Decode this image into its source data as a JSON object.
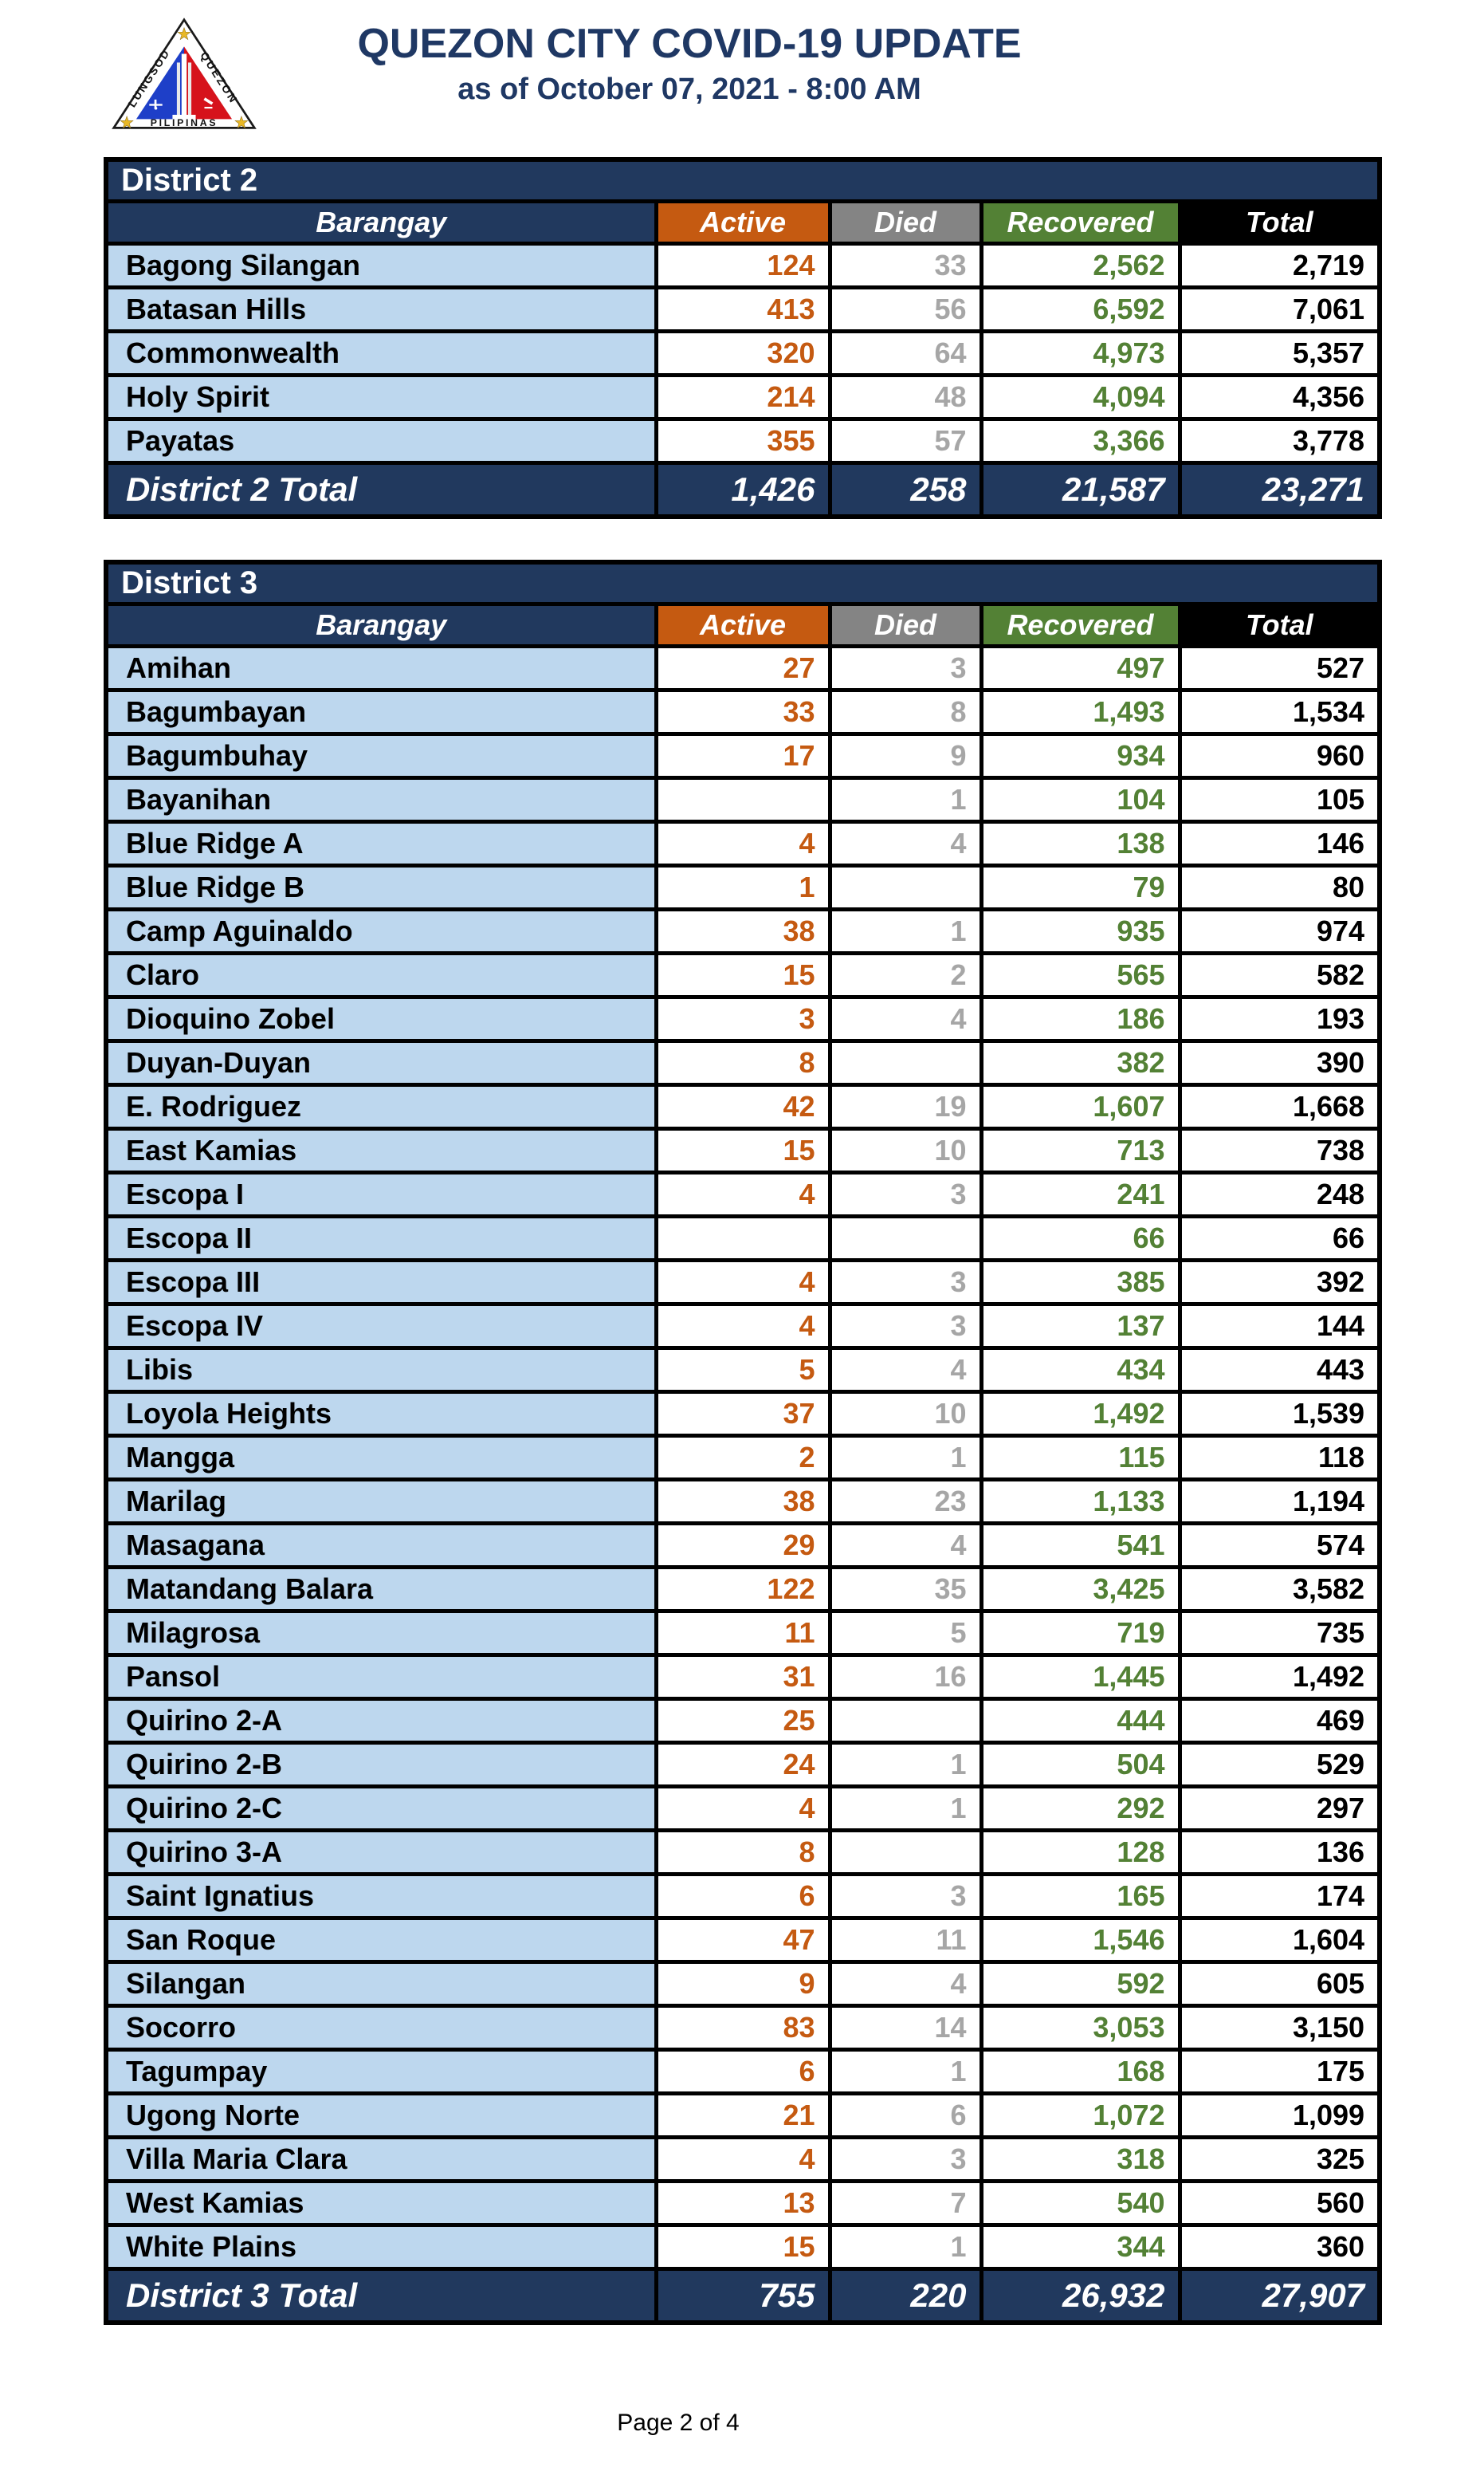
{
  "header": {
    "title": "QUEZON CITY COVID-19 UPDATE",
    "subtitle": "as of October 07, 2021 - 8:00 AM",
    "logo": {
      "text_left": "LUNGSOD",
      "text_right": "QUEZON",
      "text_bottom": "PILIPINAS"
    }
  },
  "columns": [
    "Barangay",
    "Active",
    "Died",
    "Recovered",
    "Total"
  ],
  "districts": [
    {
      "title": "District 2",
      "rows": [
        {
          "name": "Bagong Silangan",
          "active": "124",
          "died": "33",
          "recovered": "2,562",
          "total": "2,719"
        },
        {
          "name": "Batasan Hills",
          "active": "413",
          "died": "56",
          "recovered": "6,592",
          "total": "7,061"
        },
        {
          "name": "Commonwealth",
          "active": "320",
          "died": "64",
          "recovered": "4,973",
          "total": "5,357"
        },
        {
          "name": "Holy Spirit",
          "active": "214",
          "died": "48",
          "recovered": "4,094",
          "total": "4,356"
        },
        {
          "name": "Payatas",
          "active": "355",
          "died": "57",
          "recovered": "3,366",
          "total": "3,778"
        }
      ],
      "total": {
        "label": "District 2 Total",
        "active": "1,426",
        "died": "258",
        "recovered": "21,587",
        "total": "23,271"
      }
    },
    {
      "title": "District 3",
      "rows": [
        {
          "name": "Amihan",
          "active": "27",
          "died": "3",
          "recovered": "497",
          "total": "527"
        },
        {
          "name": "Bagumbayan",
          "active": "33",
          "died": "8",
          "recovered": "1,493",
          "total": "1,534"
        },
        {
          "name": "Bagumbuhay",
          "active": "17",
          "died": "9",
          "recovered": "934",
          "total": "960"
        },
        {
          "name": "Bayanihan",
          "active": "",
          "died": "1",
          "recovered": "104",
          "total": "105"
        },
        {
          "name": "Blue Ridge A",
          "active": "4",
          "died": "4",
          "recovered": "138",
          "total": "146"
        },
        {
          "name": "Blue Ridge B",
          "active": "1",
          "died": "",
          "recovered": "79",
          "total": "80"
        },
        {
          "name": "Camp Aguinaldo",
          "active": "38",
          "died": "1",
          "recovered": "935",
          "total": "974"
        },
        {
          "name": "Claro",
          "active": "15",
          "died": "2",
          "recovered": "565",
          "total": "582"
        },
        {
          "name": "Dioquino Zobel",
          "active": "3",
          "died": "4",
          "recovered": "186",
          "total": "193"
        },
        {
          "name": "Duyan-Duyan",
          "active": "8",
          "died": "",
          "recovered": "382",
          "total": "390"
        },
        {
          "name": "E. Rodriguez",
          "active": "42",
          "died": "19",
          "recovered": "1,607",
          "total": "1,668"
        },
        {
          "name": "East Kamias",
          "active": "15",
          "died": "10",
          "recovered": "713",
          "total": "738"
        },
        {
          "name": "Escopa I",
          "active": "4",
          "died": "3",
          "recovered": "241",
          "total": "248"
        },
        {
          "name": "Escopa II",
          "active": "",
          "died": "",
          "recovered": "66",
          "total": "66"
        },
        {
          "name": "Escopa III",
          "active": "4",
          "died": "3",
          "recovered": "385",
          "total": "392"
        },
        {
          "name": "Escopa IV",
          "active": "4",
          "died": "3",
          "recovered": "137",
          "total": "144"
        },
        {
          "name": "Libis",
          "active": "5",
          "died": "4",
          "recovered": "434",
          "total": "443"
        },
        {
          "name": "Loyola Heights",
          "active": "37",
          "died": "10",
          "recovered": "1,492",
          "total": "1,539"
        },
        {
          "name": "Mangga",
          "active": "2",
          "died": "1",
          "recovered": "115",
          "total": "118"
        },
        {
          "name": "Marilag",
          "active": "38",
          "died": "23",
          "recovered": "1,133",
          "total": "1,194"
        },
        {
          "name": "Masagana",
          "active": "29",
          "died": "4",
          "recovered": "541",
          "total": "574"
        },
        {
          "name": "Matandang Balara",
          "active": "122",
          "died": "35",
          "recovered": "3,425",
          "total": "3,582"
        },
        {
          "name": "Milagrosa",
          "active": "11",
          "died": "5",
          "recovered": "719",
          "total": "735"
        },
        {
          "name": "Pansol",
          "active": "31",
          "died": "16",
          "recovered": "1,445",
          "total": "1,492"
        },
        {
          "name": "Quirino 2-A",
          "active": "25",
          "died": "",
          "recovered": "444",
          "total": "469"
        },
        {
          "name": "Quirino 2-B",
          "active": "24",
          "died": "1",
          "recovered": "504",
          "total": "529"
        },
        {
          "name": "Quirino 2-C",
          "active": "4",
          "died": "1",
          "recovered": "292",
          "total": "297"
        },
        {
          "name": "Quirino 3-A",
          "active": "8",
          "died": "",
          "recovered": "128",
          "total": "136"
        },
        {
          "name": "Saint Ignatius",
          "active": "6",
          "died": "3",
          "recovered": "165",
          "total": "174"
        },
        {
          "name": "San Roque",
          "active": "47",
          "died": "11",
          "recovered": "1,546",
          "total": "1,604"
        },
        {
          "name": "Silangan",
          "active": "9",
          "died": "4",
          "recovered": "592",
          "total": "605"
        },
        {
          "name": "Socorro",
          "active": "83",
          "died": "14",
          "recovered": "3,053",
          "total": "3,150"
        },
        {
          "name": "Tagumpay",
          "active": "6",
          "died": "1",
          "recovered": "168",
          "total": "175"
        },
        {
          "name": "Ugong Norte",
          "active": "21",
          "died": "6",
          "recovered": "1,072",
          "total": "1,099"
        },
        {
          "name": "Villa Maria Clara",
          "active": "4",
          "died": "3",
          "recovered": "318",
          "total": "325"
        },
        {
          "name": "West Kamias",
          "active": "13",
          "died": "7",
          "recovered": "540",
          "total": "560"
        },
        {
          "name": "White Plains",
          "active": "15",
          "died": "1",
          "recovered": "344",
          "total": "360"
        }
      ],
      "total": {
        "label": "District 3 Total",
        "active": "755",
        "died": "220",
        "recovered": "26,932",
        "total": "27,907"
      }
    }
  ],
  "footer": {
    "page_label": "Page 2 of 4"
  },
  "colors": {
    "navy": "#21395E",
    "title_navy": "#1F3864",
    "orange": "#C55A11",
    "gray_header": "#848484",
    "gray_value": "#A6A6A6",
    "green": "#538135",
    "light_blue": "#BDD7EE",
    "black": "#000000",
    "seal_blue": "#1E3FC8",
    "seal_red": "#D6121B",
    "seal_star_yellow": "#E9B826"
  }
}
